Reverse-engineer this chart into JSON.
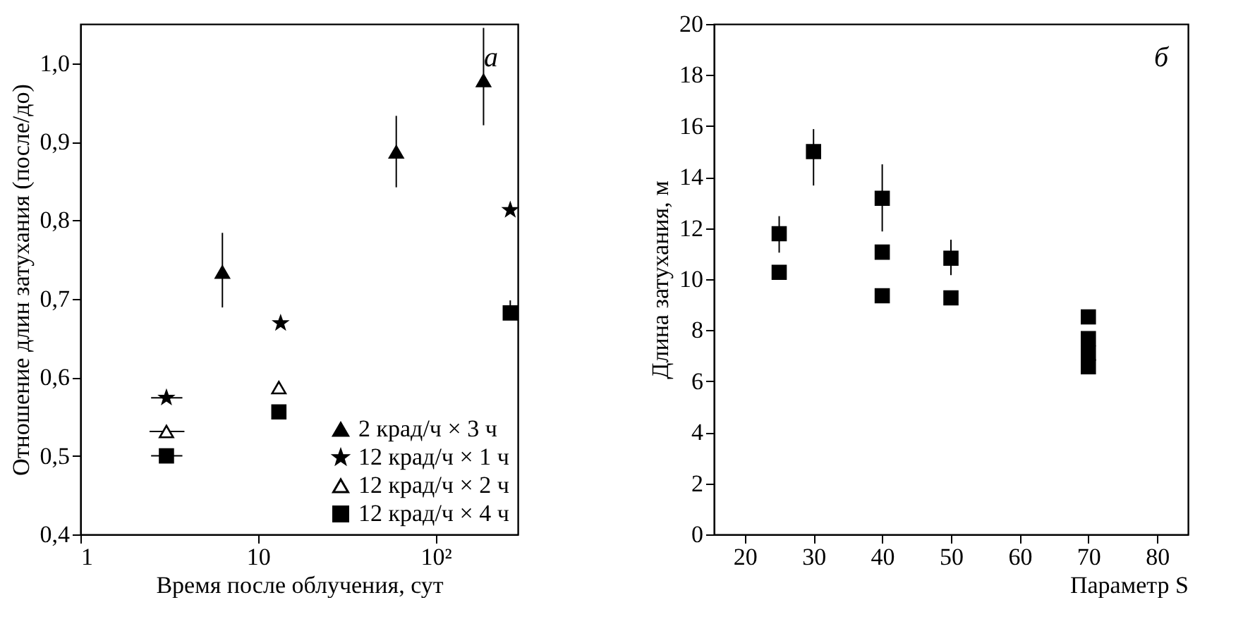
{
  "chart_data": [
    {
      "type": "scatter",
      "xlabel": "Время после облучения, сут",
      "ylabel": "Отношение длин затухания (после/до)",
      "log": "x",
      "xlim": [
        1,
        290
      ],
      "ylim": [
        0.4,
        1.05
      ],
      "xticks": [
        1,
        10,
        {
          "value": 100,
          "label": "10²"
        }
      ],
      "yticks": [
        {
          "value": 0.4,
          "label": "0,4"
        },
        {
          "value": 0.5,
          "label": "0,5"
        },
        {
          "value": 0.6,
          "label": "0,6"
        },
        {
          "value": 0.7,
          "label": "0,7"
        },
        {
          "value": 0.8,
          "label": "0,8"
        },
        {
          "value": 0.9,
          "label": "0,9"
        },
        {
          "value": 1.0,
          "label": "1,0"
        }
      ],
      "legend": "bottom right",
      "annotations": [
        "а"
      ],
      "series": [
        {
          "name": "2 крад/ч × 3 ч",
          "color": "#000000",
          "marker": "triangle",
          "x": [
            6.3,
            60,
            186
          ],
          "values": [
            0.734,
            0.887,
            0.978
          ],
          "errors": [
            [
              0.689,
              0.784
            ],
            [
              0.842,
              0.933
            ],
            [
              0.921,
              1.045
            ]
          ]
        },
        {
          "name": "12 крад/ч × 1 ч",
          "color": "#000000",
          "marker": "star",
          "x": [
            3.05,
            13.4,
            263
          ],
          "values": [
            0.574,
            0.669,
            0.813
          ],
          "xerrors": [
            [
              2.5,
              3.75
            ],
            null,
            null
          ]
        },
        {
          "name": "12 крад/ч × 2 ч",
          "color": "#ffffff",
          "marker": "triangle",
          "x": [
            3.05,
            13.1
          ],
          "values": [
            0.531,
            0.587
          ],
          "xerrors": [
            [
              2.45,
              3.85
            ],
            null
          ]
        },
        {
          "name": "12 крад/ч × 4 ч",
          "color": "#000000",
          "marker": "square",
          "x": [
            3.05,
            13.1,
            263
          ],
          "values": [
            0.5,
            0.556,
            0.682
          ],
          "xerrors": [
            [
              2.5,
              3.75
            ],
            null,
            null
          ],
          "errors": [
            null,
            null,
            [
              0.682,
              0.698
            ]
          ]
        }
      ]
    },
    {
      "type": "scatter",
      "xlabel": "Параметр S",
      "ylabel": "Длина затухания, м",
      "xlim": [
        15.5,
        84.5
      ],
      "ylim": [
        0,
        20
      ],
      "xticks": [
        20,
        30,
        40,
        50,
        60,
        70,
        80
      ],
      "yticks": [
        0,
        2,
        4,
        6,
        8,
        10,
        12,
        14,
        16,
        18,
        20
      ],
      "annotations": [
        "б"
      ],
      "series": [
        {
          "color": "#000000",
          "marker": "square",
          "x": [
            25,
            25,
            30,
            40,
            40,
            40,
            50,
            50,
            70,
            70,
            70,
            70
          ],
          "values": [
            11.78,
            10.27,
            15.0,
            13.17,
            11.06,
            9.35,
            10.82,
            9.27,
            8.52,
            7.67,
            7.1,
            6.57
          ],
          "errors": [
            [
              11.04,
              12.47
            ],
            null,
            [
              13.67,
              15.88
            ],
            [
              11.87,
              14.5
            ],
            null,
            null,
            [
              10.16,
              11.55
            ],
            null,
            null,
            null,
            null,
            null
          ]
        }
      ]
    }
  ]
}
